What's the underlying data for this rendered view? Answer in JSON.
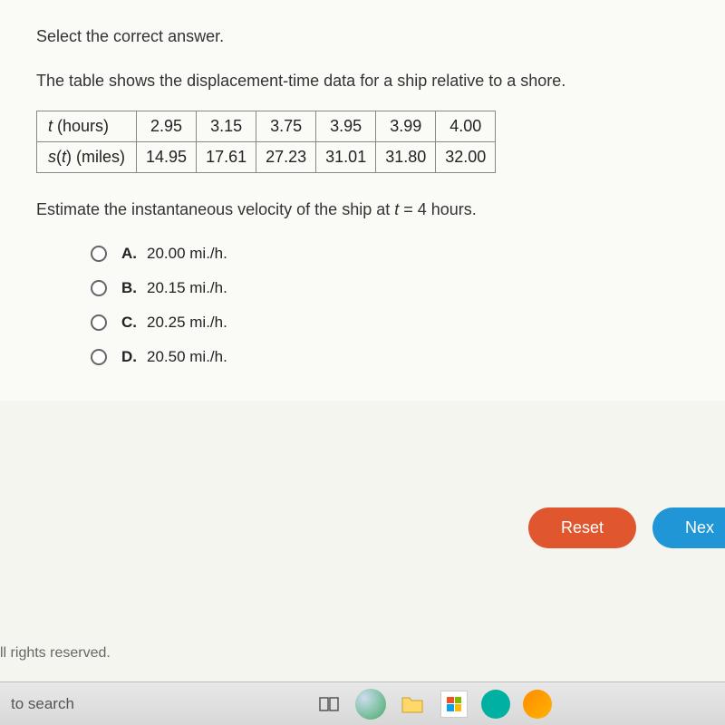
{
  "instruction": "Select the correct answer.",
  "question_intro": "The table shows the displacement-time data for a ship relative to a shore.",
  "table": {
    "row_headers": [
      "t (hours)",
      "s(t) (miles)"
    ],
    "row_header_html": {
      "t": "<span class='italic'>t</span> (hours)",
      "st": "<span class='sfunc'>s</span>(<span class='italic'>t</span>) (miles)"
    },
    "data": {
      "t": [
        "2.95",
        "3.15",
        "3.75",
        "3.95",
        "3.99",
        "4.00"
      ],
      "st": [
        "14.95",
        "17.61",
        "27.23",
        "31.01",
        "31.80",
        "32.00"
      ]
    },
    "border_color": "#888",
    "cell_fontsize": 18
  },
  "sub_question_pre": "Estimate the instantaneous velocity of the ship at ",
  "sub_question_var": "t",
  "sub_question_post": " = 4 hours.",
  "options": [
    {
      "letter": "A.",
      "text": "20.00 mi./h."
    },
    {
      "letter": "B.",
      "text": "20.15 mi./h."
    },
    {
      "letter": "C.",
      "text": "20.25 mi./h."
    },
    {
      "letter": "D.",
      "text": "20.50 mi./h."
    }
  ],
  "buttons": {
    "reset": "Reset",
    "next": "Nex"
  },
  "colors": {
    "reset_bg": "#e0562f",
    "next_bg": "#2196d6",
    "page_bg": "#fafaf7"
  },
  "footer": {
    "rights": "ll rights reserved.",
    "search": "to search"
  }
}
